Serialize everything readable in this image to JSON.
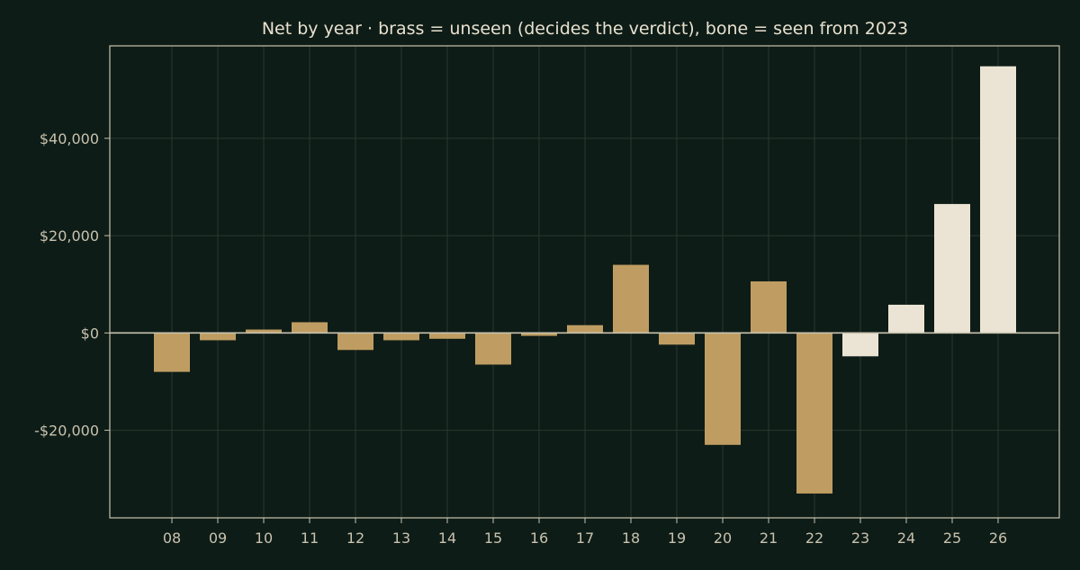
{
  "chart_data": {
    "type": "bar",
    "title": "Net by year  ·  brass = unseen (decides the verdict), bone = seen from 2023",
    "xlabel": "",
    "ylabel": "",
    "categories": [
      "08",
      "09",
      "10",
      "11",
      "12",
      "13",
      "14",
      "15",
      "16",
      "17",
      "18",
      "19",
      "20",
      "21",
      "22",
      "23",
      "24",
      "25",
      "26"
    ],
    "values": [
      -8000,
      -1500,
      700,
      2200,
      -3500,
      -1500,
      -1200,
      -6500,
      -600,
      1600,
      14000,
      -2400,
      -23000,
      10600,
      -33000,
      -4800,
      5800,
      26500,
      54800
    ],
    "groups": [
      "unseen",
      "unseen",
      "unseen",
      "unseen",
      "unseen",
      "unseen",
      "unseen",
      "unseen",
      "unseen",
      "unseen",
      "unseen",
      "unseen",
      "unseen",
      "unseen",
      "unseen",
      "seen",
      "seen",
      "seen",
      "seen"
    ],
    "ylim": [
      -38000,
      59000
    ],
    "yticks": [
      -20000,
      0,
      20000,
      40000
    ],
    "ytick_labels": [
      "-$20,000",
      "$0",
      "$20,000",
      "$40,000"
    ],
    "grid": true,
    "colors": {
      "unseen": "#bf9d62",
      "seen": "#ebe4d4",
      "background": "#0e1c17",
      "axis": "#c8c2ae",
      "grid": "#2a382f",
      "text": "#e8e1cf",
      "tick_text": "#c8c2ae"
    }
  }
}
